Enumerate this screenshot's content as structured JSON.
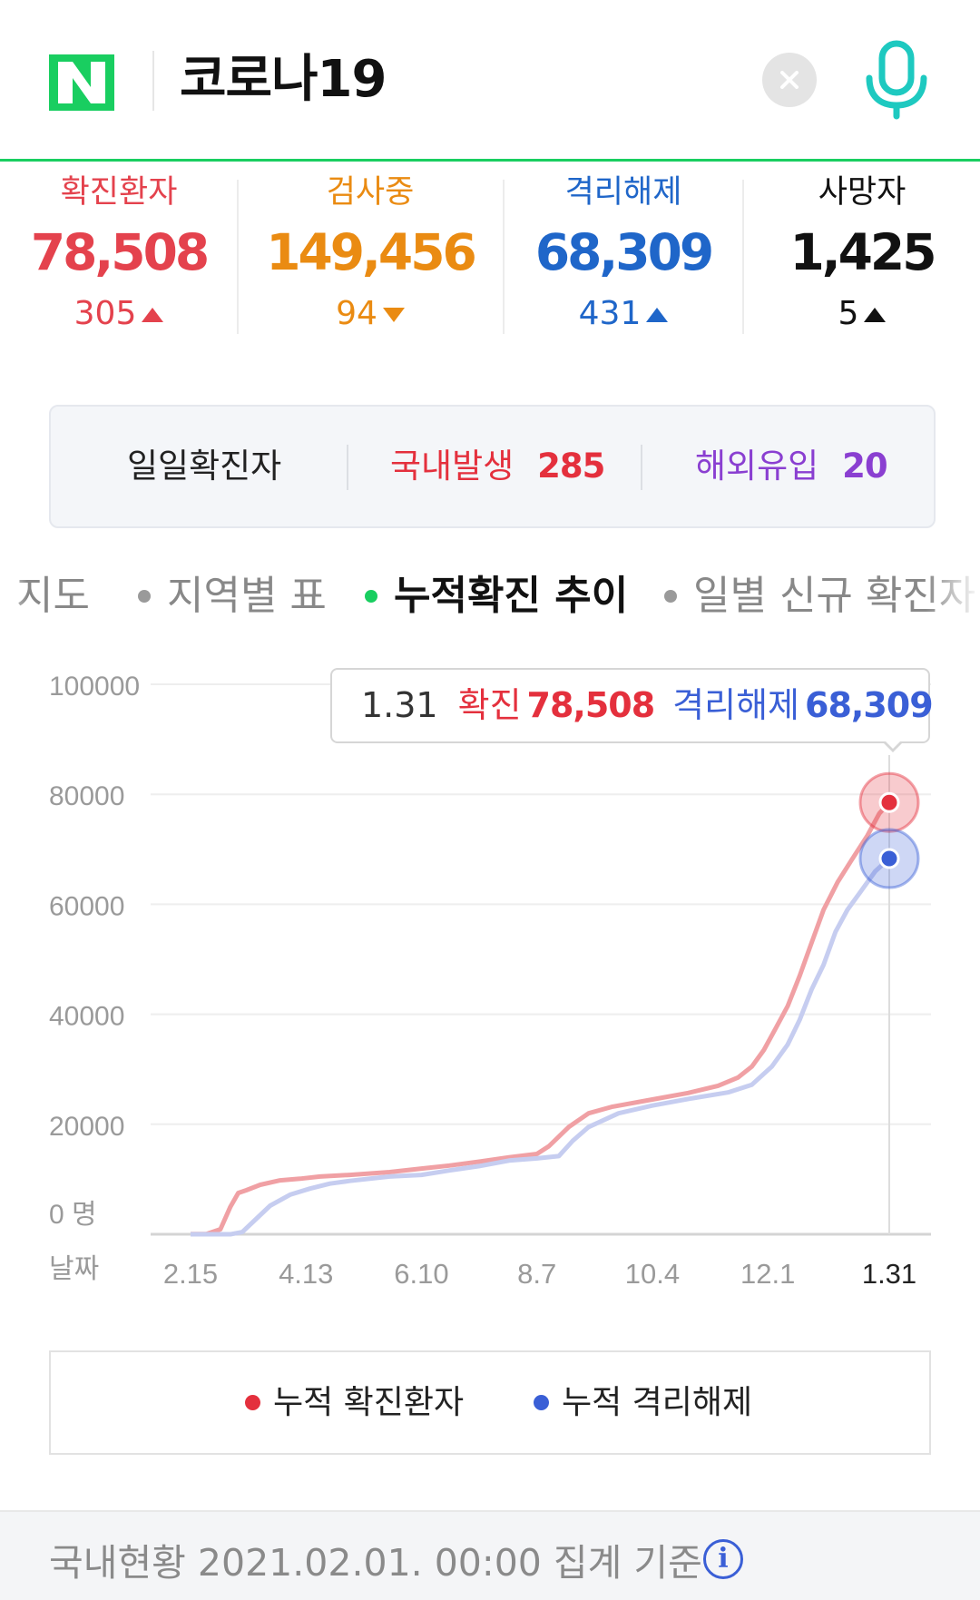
{
  "search": {
    "logo_text": "N",
    "query": "코로나19"
  },
  "stats": [
    {
      "label": "확진환자",
      "value": "78,508",
      "delta": "305",
      "direction": "up",
      "color": "#e4424d"
    },
    {
      "label": "검사중",
      "value": "149,456",
      "delta": "94",
      "direction": "down",
      "color": "#ea8b12"
    },
    {
      "label": "격리해제",
      "value": "68,309",
      "delta": "431",
      "direction": "up",
      "color": "#1f66c9"
    },
    {
      "label": "사망자",
      "value": "1,425",
      "delta": "5",
      "direction": "up",
      "color": "#111111"
    }
  ],
  "daily": {
    "title": "일일확진자",
    "domestic_label": "국내발생",
    "domestic_value": "285",
    "overseas_label": "해외유입",
    "overseas_value": "20"
  },
  "tabs": [
    {
      "label": "지도",
      "active": false
    },
    {
      "label": "지역별 표",
      "active": false
    },
    {
      "label": "누적확진 추이",
      "active": true
    },
    {
      "label": "일별 신규 확진자",
      "active": false
    }
  ],
  "tooltip": {
    "date": "1.31",
    "confirmed_label": "확진",
    "confirmed_value": "78,508",
    "released_label": "격리해제",
    "released_value": "68,309"
  },
  "chart_data": {
    "type": "line",
    "ylim": [
      0,
      100000
    ],
    "y_ticks": [
      "100000",
      "80000",
      "60000",
      "40000",
      "20000",
      "0 명"
    ],
    "x_axis_label": "날짜",
    "x_ticks": [
      "2.15",
      "4.13",
      "6.10",
      "8.7",
      "10.4",
      "12.1",
      "1.31"
    ],
    "x_tick_index": [
      0,
      58,
      116,
      174,
      232,
      290,
      351
    ],
    "highlighted_date": "1.31",
    "series": [
      {
        "name": "누적 확진환자",
        "color": "#f0a0a4",
        "marker_color": "#e4303d",
        "points": [
          [
            0,
            28
          ],
          [
            8,
            30
          ],
          [
            15,
            900
          ],
          [
            20,
            5000
          ],
          [
            24,
            7500
          ],
          [
            28,
            8000
          ],
          [
            35,
            9000
          ],
          [
            45,
            9800
          ],
          [
            55,
            10100
          ],
          [
            65,
            10500
          ],
          [
            80,
            10800
          ],
          [
            100,
            11300
          ],
          [
            116,
            11950
          ],
          [
            130,
            12500
          ],
          [
            145,
            13200
          ],
          [
            160,
            14000
          ],
          [
            174,
            14600
          ],
          [
            180,
            16000
          ],
          [
            190,
            19500
          ],
          [
            200,
            22000
          ],
          [
            212,
            23200
          ],
          [
            232,
            24500
          ],
          [
            250,
            25700
          ],
          [
            265,
            27000
          ],
          [
            275,
            28500
          ],
          [
            282,
            30500
          ],
          [
            288,
            33500
          ],
          [
            294,
            37500
          ],
          [
            300,
            41500
          ],
          [
            306,
            47000
          ],
          [
            312,
            53000
          ],
          [
            318,
            59000
          ],
          [
            325,
            64000
          ],
          [
            332,
            68000
          ],
          [
            340,
            72500
          ],
          [
            346,
            76500
          ],
          [
            351,
            78508
          ]
        ]
      },
      {
        "name": "누적 격리해제",
        "color": "#c6cdf0",
        "marker_color": "#3a5fd6",
        "points": [
          [
            0,
            0
          ],
          [
            20,
            0
          ],
          [
            26,
            400
          ],
          [
            33,
            2800
          ],
          [
            40,
            5200
          ],
          [
            50,
            7200
          ],
          [
            60,
            8300
          ],
          [
            70,
            9200
          ],
          [
            80,
            9700
          ],
          [
            100,
            10500
          ],
          [
            116,
            10800
          ],
          [
            130,
            11600
          ],
          [
            145,
            12400
          ],
          [
            160,
            13400
          ],
          [
            174,
            13800
          ],
          [
            185,
            14200
          ],
          [
            192,
            17000
          ],
          [
            200,
            19500
          ],
          [
            215,
            22000
          ],
          [
            232,
            23400
          ],
          [
            250,
            24600
          ],
          [
            270,
            25800
          ],
          [
            282,
            27200
          ],
          [
            292,
            30500
          ],
          [
            300,
            34500
          ],
          [
            306,
            39000
          ],
          [
            312,
            44500
          ],
          [
            318,
            49000
          ],
          [
            324,
            55000
          ],
          [
            330,
            59000
          ],
          [
            337,
            62500
          ],
          [
            344,
            66000
          ],
          [
            351,
            68309
          ]
        ]
      }
    ]
  },
  "legend": {
    "confirmed_label": "누적 확진환자",
    "released_label": "누적 격리해제",
    "confirmed_color": "#e4303d",
    "released_color": "#3a5fd6"
  },
  "footer": {
    "text": "국내현황 2021.02.01. 00:00 집계 기준",
    "info_icon": "i"
  }
}
